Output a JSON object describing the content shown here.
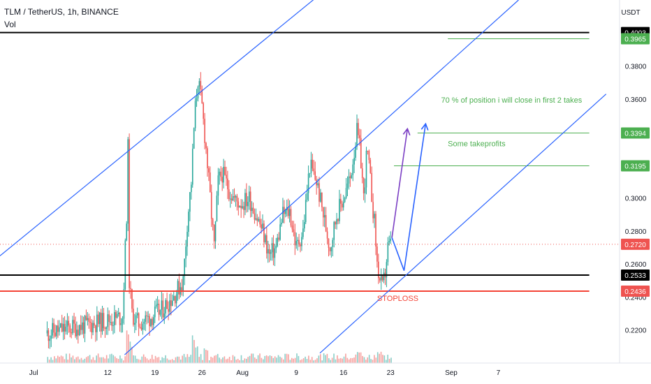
{
  "header": {
    "symbol_line": "TLM / TetherUS, 1h, BINANCE",
    "vol_label": "Vol"
  },
  "currency": "USDT",
  "chart_data": {
    "type": "line",
    "title": "TLM / TetherUS, 1h, BINANCE",
    "ylim": [
      0.2,
      0.42
    ],
    "y_ticks": [
      "0.2200",
      "0.2400",
      "0.2600",
      "0.2800",
      "0.3000",
      "0.3400",
      "0.3600",
      "0.3800"
    ],
    "y_tick_values": [
      0.22,
      0.24,
      0.26,
      0.28,
      0.3,
      0.34,
      0.36,
      0.38
    ],
    "x_ticks": [
      "Jul",
      "12",
      "19",
      "26",
      "Aug",
      "9",
      "16",
      "23",
      "Sep",
      "7"
    ],
    "x_tick_days": [
      1,
      12,
      19,
      26,
      32,
      40,
      47,
      54,
      63,
      70
    ],
    "xlim_days": [
      -4,
      88
    ],
    "price_labels": [
      {
        "text": "0.4003",
        "value": 0.4003,
        "bg": "#000000",
        "fg": "#ffffff"
      },
      {
        "text": "0.3965",
        "value": 0.3965,
        "bg": "#4caf50",
        "fg": "#ffffff"
      },
      {
        "text": "0.3394",
        "value": 0.3394,
        "bg": "#4caf50",
        "fg": "#ffffff"
      },
      {
        "text": "0.3195",
        "value": 0.3195,
        "bg": "#4caf50",
        "fg": "#ffffff"
      },
      {
        "text": "0.2720",
        "value": 0.272,
        "bg": "#ef5350",
        "fg": "#ffffff"
      },
      {
        "text": "0.2533",
        "value": 0.2533,
        "bg": "#000000",
        "fg": "#ffffff"
      },
      {
        "text": "0.2436",
        "value": 0.2436,
        "bg": "#ef5350",
        "fg": "#ffffff"
      }
    ],
    "horizontal_lines": [
      {
        "value": 0.4003,
        "color": "#000000",
        "from_day": -4,
        "to_day": 83.5,
        "width": 2
      },
      {
        "value": 0.3965,
        "color": "#4caf50",
        "from_day": 62.5,
        "to_day": 83.5,
        "width": 1
      },
      {
        "value": 0.3394,
        "color": "#4caf50",
        "from_day": 58,
        "to_day": 83.5,
        "width": 1
      },
      {
        "value": 0.3195,
        "color": "#4caf50",
        "from_day": 54.5,
        "to_day": 83.5,
        "width": 1
      },
      {
        "value": 0.2533,
        "color": "#000000",
        "from_day": -4,
        "to_day": 83.5,
        "width": 2
      },
      {
        "value": 0.2436,
        "color": "#f44336",
        "from_day": -4,
        "to_day": 83.5,
        "width": 2
      }
    ],
    "current_price": {
      "value": 0.272,
      "color": "#ef5350"
    },
    "channel_lines": [
      {
        "from": [
          -4,
          0.265
        ],
        "to": [
          44,
          0.425
        ],
        "color": "#2962ff"
      },
      {
        "from": [
          14.5,
          0.205
        ],
        "to": [
          73,
          0.42
        ],
        "color": "#2962ff"
      },
      {
        "from": [
          43.5,
          0.206
        ],
        "to": [
          86,
          0.363
        ],
        "color": "#2962ff"
      }
    ],
    "arrows": [
      {
        "points": [
          [
            54.2,
            0.276
          ],
          [
            56.5,
            0.342
          ]
        ],
        "color": "#7b3fc4"
      },
      {
        "points": [
          [
            54.2,
            0.276
          ],
          [
            56,
            0.256
          ],
          [
            59.2,
            0.345
          ]
        ],
        "color": "#2962ff"
      }
    ],
    "annotations": [
      {
        "text": "70 % of position i will close in first 2 takes",
        "day": 61.5,
        "value": 0.3578,
        "color": "#4caf50"
      },
      {
        "text": "Some takeprofits",
        "day": 62.5,
        "value": 0.3313,
        "color": "#4caf50"
      },
      {
        "text": "STOPLOSS",
        "day": 52,
        "value": 0.2376,
        "color": "#f44336"
      }
    ],
    "price_series": {
      "start_day": 3,
      "end_day": 54.2,
      "points": [
        [
          3,
          0.218
        ],
        [
          6,
          0.221
        ],
        [
          9,
          0.223
        ],
        [
          12,
          0.226
        ],
        [
          14.2,
          0.228
        ],
        [
          14.8,
          0.29
        ],
        [
          15.0,
          0.33
        ],
        [
          15.2,
          0.25
        ],
        [
          15.6,
          0.23
        ],
        [
          16.5,
          0.224
        ],
        [
          18,
          0.227
        ],
        [
          20,
          0.232
        ],
        [
          22,
          0.242
        ],
        [
          23.2,
          0.25
        ],
        [
          23.8,
          0.285
        ],
        [
          24.4,
          0.31
        ],
        [
          24.9,
          0.35
        ],
        [
          25.4,
          0.372
        ],
        [
          26.0,
          0.355
        ],
        [
          26.6,
          0.33
        ],
        [
          27.2,
          0.3
        ],
        [
          27.8,
          0.27
        ],
        [
          28.4,
          0.31
        ],
        [
          29.0,
          0.315
        ],
        [
          30.0,
          0.305
        ],
        [
          31.0,
          0.298
        ],
        [
          32.0,
          0.297
        ],
        [
          33.0,
          0.3
        ],
        [
          34.0,
          0.29
        ],
        [
          35.0,
          0.28
        ],
        [
          36.0,
          0.265
        ],
        [
          37.0,
          0.27
        ],
        [
          38.0,
          0.29
        ],
        [
          39.0,
          0.292
        ],
        [
          40.0,
          0.27
        ],
        [
          41.0,
          0.28
        ],
        [
          42.0,
          0.32
        ],
        [
          43.0,
          0.31
        ],
        [
          44.0,
          0.29
        ],
        [
          45.0,
          0.27
        ],
        [
          46.0,
          0.29
        ],
        [
          47.0,
          0.3
        ],
        [
          48.0,
          0.312
        ],
        [
          49.0,
          0.34
        ],
        [
          49.5,
          0.328
        ],
        [
          50.0,
          0.3
        ],
        [
          50.5,
          0.33
        ],
        [
          51.0,
          0.31
        ],
        [
          51.6,
          0.285
        ],
        [
          52.0,
          0.26
        ],
        [
          52.4,
          0.25
        ],
        [
          52.8,
          0.245
        ],
        [
          53.2,
          0.255
        ],
        [
          53.6,
          0.27
        ],
        [
          54.2,
          0.272
        ]
      ],
      "color": "#26a69a",
      "down_color": "#ef5350"
    },
    "volume": {
      "max_height_fraction": 0.09,
      "spikes": [
        {
          "day": 14.9,
          "level": 1.0
        },
        {
          "day": 15.3,
          "level": 0.7
        },
        {
          "day": 24.6,
          "level": 0.85
        },
        {
          "day": 25.2,
          "level": 0.55
        },
        {
          "day": 26.5,
          "level": 0.45
        },
        {
          "day": 49.2,
          "level": 0.35
        },
        {
          "day": 52.3,
          "level": 0.4
        }
      ]
    },
    "grid": false,
    "legend": "none"
  }
}
